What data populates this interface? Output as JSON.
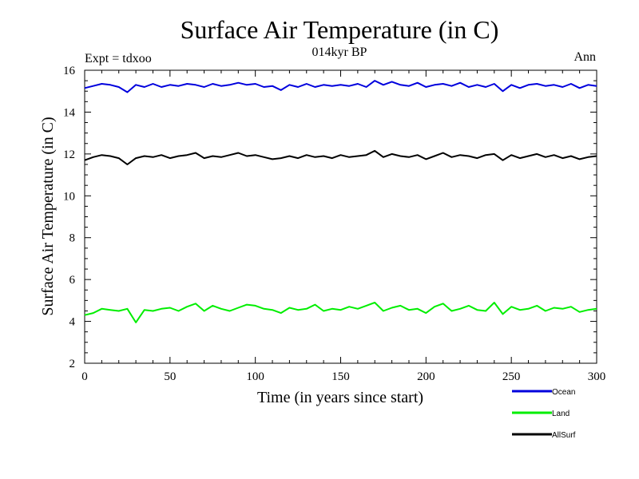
{
  "chart_data": {
    "type": "line",
    "title": "Surface Air Temperature (in C)",
    "subtitle": "014kyr BP",
    "annotation_left": "Expt = tdxoo",
    "annotation_right": "Ann",
    "xlabel": "Time (in years since start)",
    "ylabel": "Surface Air Temperature (in C)",
    "xlim": [
      0,
      300
    ],
    "ylim": [
      2,
      16
    ],
    "xticks": [
      0,
      50,
      100,
      150,
      200,
      250,
      300
    ],
    "yticks": [
      2,
      4,
      6,
      8,
      10,
      12,
      14,
      16
    ],
    "x": [
      0,
      5,
      10,
      15,
      20,
      25,
      30,
      35,
      40,
      45,
      50,
      55,
      60,
      65,
      70,
      75,
      80,
      85,
      90,
      95,
      100,
      105,
      110,
      115,
      120,
      125,
      130,
      135,
      140,
      145,
      150,
      155,
      160,
      165,
      170,
      175,
      180,
      185,
      190,
      195,
      200,
      205,
      210,
      215,
      220,
      225,
      230,
      235,
      240,
      245,
      250,
      255,
      260,
      265,
      270,
      275,
      280,
      285,
      290,
      295,
      300
    ],
    "series": [
      {
        "name": "Ocean",
        "color": "#0000dd",
        "values": [
          15.15,
          15.25,
          15.35,
          15.3,
          15.2,
          14.95,
          15.3,
          15.2,
          15.35,
          15.2,
          15.3,
          15.25,
          15.35,
          15.3,
          15.2,
          15.35,
          15.25,
          15.3,
          15.4,
          15.3,
          15.35,
          15.2,
          15.25,
          15.05,
          15.3,
          15.2,
          15.35,
          15.2,
          15.3,
          15.25,
          15.3,
          15.25,
          15.35,
          15.2,
          15.5,
          15.3,
          15.45,
          15.3,
          15.25,
          15.4,
          15.2,
          15.3,
          15.35,
          15.25,
          15.4,
          15.2,
          15.3,
          15.2,
          15.35,
          15.0,
          15.3,
          15.15,
          15.3,
          15.35,
          15.25,
          15.3,
          15.2,
          15.35,
          15.15,
          15.3,
          15.25
        ]
      },
      {
        "name": "Land",
        "color": "#00ee00",
        "values": [
          4.3,
          4.4,
          4.6,
          4.55,
          4.5,
          4.6,
          3.95,
          4.55,
          4.5,
          4.6,
          4.65,
          4.5,
          4.7,
          4.85,
          4.5,
          4.75,
          4.6,
          4.5,
          4.65,
          4.8,
          4.75,
          4.6,
          4.55,
          4.4,
          4.65,
          4.55,
          4.6,
          4.8,
          4.5,
          4.6,
          4.55,
          4.7,
          4.6,
          4.75,
          4.9,
          4.5,
          4.65,
          4.75,
          4.55,
          4.6,
          4.4,
          4.7,
          4.85,
          4.5,
          4.6,
          4.75,
          4.55,
          4.5,
          4.9,
          4.35,
          4.7,
          4.55,
          4.6,
          4.75,
          4.5,
          4.65,
          4.6,
          4.7,
          4.45,
          4.55,
          4.6
        ]
      },
      {
        "name": "AllSurf",
        "color": "#000000",
        "values": [
          11.7,
          11.85,
          11.95,
          11.9,
          11.8,
          11.5,
          11.8,
          11.9,
          11.85,
          11.95,
          11.8,
          11.9,
          11.95,
          12.05,
          11.8,
          11.9,
          11.85,
          11.95,
          12.05,
          11.9,
          11.95,
          11.85,
          11.75,
          11.8,
          11.9,
          11.8,
          11.95,
          11.85,
          11.9,
          11.8,
          11.95,
          11.85,
          11.9,
          11.95,
          12.15,
          11.85,
          12.0,
          11.9,
          11.85,
          11.95,
          11.75,
          11.9,
          12.05,
          11.85,
          11.95,
          11.9,
          11.8,
          11.95,
          12.0,
          11.7,
          11.95,
          11.8,
          11.9,
          12.0,
          11.85,
          11.95,
          11.8,
          11.9,
          11.75,
          11.85,
          11.9
        ]
      }
    ]
  }
}
